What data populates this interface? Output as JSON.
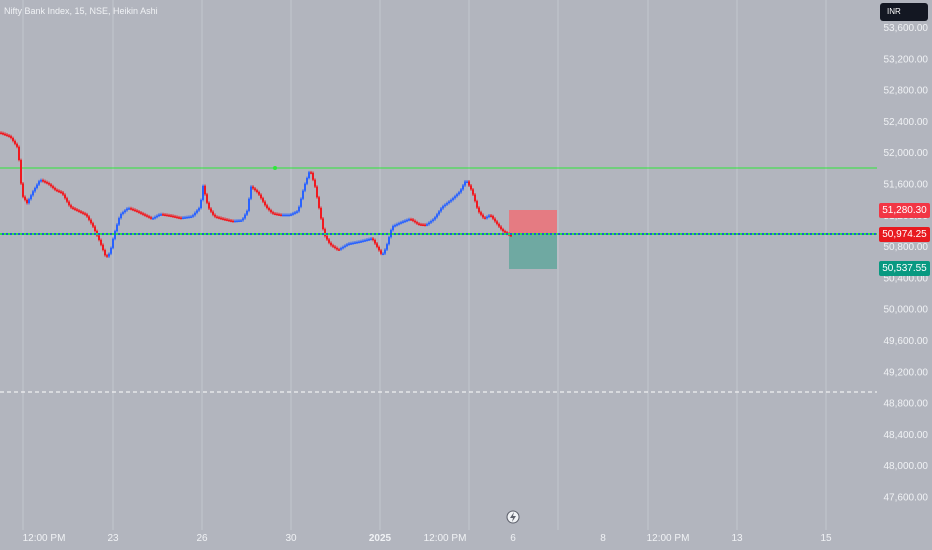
{
  "symbol": {
    "title": "Nifty Bank Index, 15, NSE, Heikin Ashi"
  },
  "currency": {
    "label": "INR"
  },
  "price_axis": {
    "ticks": [
      "53,600.00",
      "53,200.00",
      "52,800.00",
      "52,400.00",
      "52,000.00",
      "51,600.00",
      "51,200.00",
      "50,800.00",
      "50,400.00",
      "50,000.00",
      "49,600.00",
      "49,200.00",
      "48,800.00",
      "48,400.00",
      "48,000.00",
      "47,600.00"
    ]
  },
  "time_axis": {
    "labels": [
      "12:00 PM",
      "23",
      "26",
      "30",
      "2025",
      "12:00 PM",
      "6",
      "8",
      "12:00 PM",
      "13",
      "15"
    ]
  },
  "price_tags": {
    "stop": "51,280.30",
    "last": "50,974.25",
    "target": "50,537.55"
  },
  "colors": {
    "background": "#b2b5be",
    "up": "#2962ff",
    "down": "#f0191f",
    "resistance": "#2ee83a",
    "last_price_line": "#1e5ad8",
    "stop_zone": "#e57b82",
    "target_zone": "#6fa9a2",
    "stop_tag": "#f23645",
    "last_tag": "#e8191f",
    "target_tag": "#089981"
  },
  "icons": {
    "time_axis_marker": "lightning-icon"
  },
  "chart_data": {
    "type": "candlestick",
    "style": "Heikin Ashi",
    "y_range": [
      47450,
      53800
    ],
    "levels": {
      "resistance": 51870,
      "last": 50974.25,
      "stop": 51280.3,
      "target": 50537.55,
      "dashed_support": 48995
    },
    "path_points": [
      [
        0,
        52250
      ],
      [
        10,
        52200
      ],
      [
        18,
        52050
      ],
      [
        22,
        51450
      ],
      [
        27,
        51350
      ],
      [
        33,
        51500
      ],
      [
        40,
        51650
      ],
      [
        48,
        51600
      ],
      [
        55,
        51520
      ],
      [
        62,
        51480
      ],
      [
        70,
        51300
      ],
      [
        78,
        51250
      ],
      [
        86,
        51200
      ],
      [
        93,
        51050
      ],
      [
        100,
        50850
      ],
      [
        106,
        50650
      ],
      [
        110,
        50720
      ],
      [
        114,
        50950
      ],
      [
        120,
        51200
      ],
      [
        128,
        51290
      ],
      [
        136,
        51250
      ],
      [
        144,
        51200
      ],
      [
        152,
        51150
      ],
      [
        160,
        51210
      ],
      [
        170,
        51190
      ],
      [
        180,
        51160
      ],
      [
        192,
        51180
      ],
      [
        200,
        51300
      ],
      [
        203,
        51570
      ],
      [
        208,
        51300
      ],
      [
        214,
        51180
      ],
      [
        222,
        51150
      ],
      [
        232,
        51120
      ],
      [
        242,
        51130
      ],
      [
        247,
        51250
      ],
      [
        251,
        51560
      ],
      [
        258,
        51480
      ],
      [
        266,
        51300
      ],
      [
        272,
        51220
      ],
      [
        280,
        51200
      ],
      [
        290,
        51200
      ],
      [
        298,
        51250
      ],
      [
        304,
        51560
      ],
      [
        310,
        51780
      ],
      [
        315,
        51560
      ],
      [
        320,
        51220
      ],
      [
        324,
        50950
      ],
      [
        330,
        50820
      ],
      [
        338,
        50750
      ],
      [
        348,
        50830
      ],
      [
        360,
        50860
      ],
      [
        372,
        50900
      ],
      [
        382,
        50680
      ],
      [
        386,
        50780
      ],
      [
        392,
        51050
      ],
      [
        400,
        51100
      ],
      [
        410,
        51150
      ],
      [
        418,
        51080
      ],
      [
        426,
        51070
      ],
      [
        434,
        51150
      ],
      [
        442,
        51300
      ],
      [
        452,
        51400
      ],
      [
        460,
        51500
      ],
      [
        466,
        51650
      ],
      [
        472,
        51500
      ],
      [
        478,
        51250
      ],
      [
        484,
        51150
      ],
      [
        490,
        51200
      ],
      [
        496,
        51100
      ],
      [
        502,
        51000
      ],
      [
        508,
        50950
      ],
      [
        512,
        50930
      ]
    ]
  }
}
